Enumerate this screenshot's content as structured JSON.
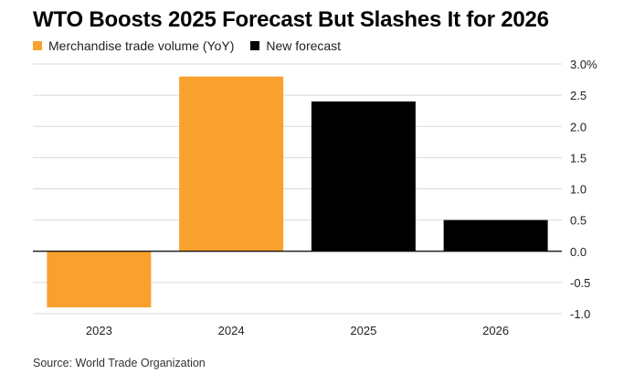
{
  "title": "WTO Boosts 2025 Forecast But Slashes It for 2026",
  "source": "Source: World Trade Organization",
  "chart_data": {
    "type": "bar",
    "categories": [
      "2023",
      "2024",
      "2025",
      "2026"
    ],
    "values": [
      -0.9,
      2.8,
      2.4,
      0.5
    ],
    "series_assignment": [
      "Merchandise trade volume (YoY)",
      "Merchandise trade volume (YoY)",
      "New forecast",
      "New forecast"
    ],
    "legend": [
      {
        "name": "Merchandise trade volume (YoY)",
        "color": "#f9a12e"
      },
      {
        "name": "New forecast",
        "color": "#000000"
      }
    ],
    "ylim": [
      -1.0,
      3.0
    ],
    "yticks": [
      3.0,
      2.5,
      2.0,
      1.5,
      1.0,
      0.5,
      0.0,
      -0.5,
      -1.0
    ],
    "ytick_labels": [
      "3.0%",
      "2.5",
      "2.0",
      "1.5",
      "1.0",
      "0.5",
      "0.0",
      "-0.5",
      "-1.0"
    ],
    "grid": true,
    "legend_position": "top-left"
  }
}
